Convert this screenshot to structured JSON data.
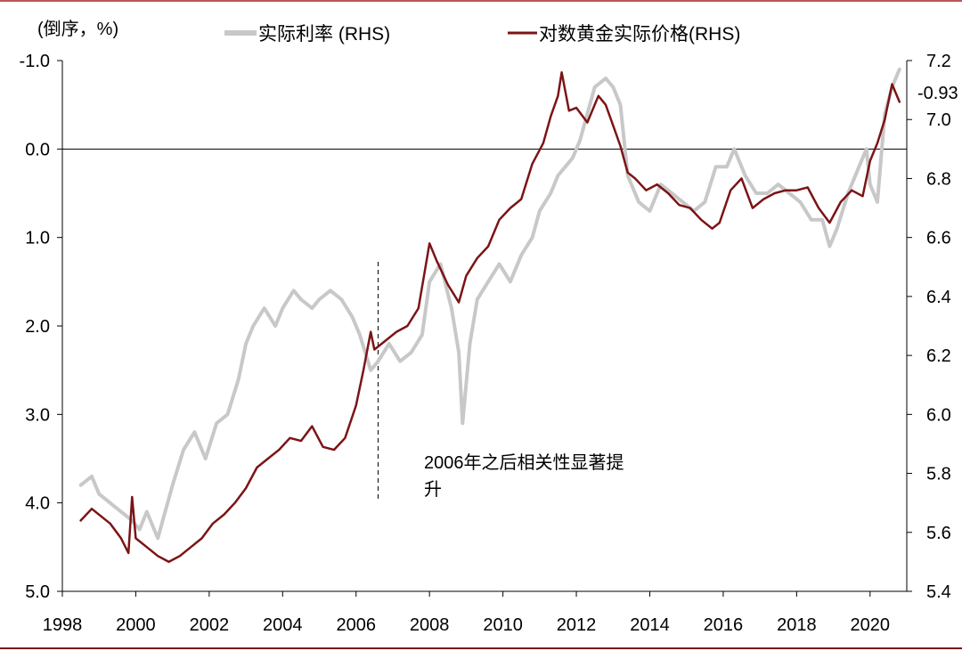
{
  "chart_data": {
    "type": "line",
    "left_axis_label": "(倒序，%)",
    "legend": [
      {
        "label": "实际利率 (RHS)",
        "color": "#c8c8c8"
      },
      {
        "label": "对数黄金实际价格(RHS)",
        "color": "#7b1416"
      }
    ],
    "left_axis": {
      "inverted": true,
      "ylim": [
        -1.0,
        5.0
      ],
      "ticks": [
        "-1.0",
        "0.0",
        "1.0",
        "2.0",
        "3.0",
        "4.0",
        "5.0"
      ]
    },
    "right_axis": {
      "ylim": [
        5.4,
        7.2
      ],
      "ticks": [
        "7.2",
        "7.0",
        "6.8",
        "6.6",
        "6.4",
        "6.2",
        "6.0",
        "5.8",
        "5.6",
        "5.4"
      ]
    },
    "x_ticks": [
      "1998",
      "2000",
      "2002",
      "2004",
      "2006",
      "2008",
      "2010",
      "2012",
      "2014",
      "2016",
      "2018",
      "2020"
    ],
    "annotation": {
      "text_line1": "2006年之后相关性显著提",
      "text_line2": "升",
      "x": 2006.6
    },
    "end_label": "-0.93",
    "series": [
      {
        "name": "实际利率 (RHS)",
        "axis": "left",
        "color": "#c8c8c8",
        "x": [
          1998.5,
          1998.8,
          1999.0,
          1999.3,
          1999.6,
          1999.9,
          2000.1,
          2000.3,
          2000.6,
          2000.8,
          2001.0,
          2001.3,
          2001.6,
          2001.9,
          2002.2,
          2002.5,
          2002.8,
          2003.0,
          2003.2,
          2003.5,
          2003.8,
          2004.0,
          2004.3,
          2004.5,
          2004.8,
          2005.0,
          2005.3,
          2005.6,
          2005.9,
          2006.1,
          2006.4,
          2006.6,
          2006.9,
          2007.2,
          2007.5,
          2007.8,
          2008.0,
          2008.3,
          2008.6,
          2008.8,
          2008.9,
          2009.1,
          2009.3,
          2009.6,
          2009.9,
          2010.2,
          2010.5,
          2010.8,
          2011.0,
          2011.3,
          2011.5,
          2011.7,
          2011.9,
          2012.1,
          2012.3,
          2012.5,
          2012.8,
          2013.0,
          2013.2,
          2013.4,
          2013.7,
          2014.0,
          2014.3,
          2014.6,
          2014.9,
          2015.2,
          2015.5,
          2015.8,
          2016.1,
          2016.3,
          2016.6,
          2016.9,
          2017.2,
          2017.5,
          2017.8,
          2018.1,
          2018.4,
          2018.7,
          2018.9,
          2019.1,
          2019.4,
          2019.7,
          2019.9,
          2020.0,
          2020.2,
          2020.4,
          2020.6,
          2020.8
        ],
        "values": [
          3.8,
          3.7,
          3.9,
          4.0,
          4.1,
          4.2,
          4.3,
          4.1,
          4.4,
          4.1,
          3.8,
          3.4,
          3.2,
          3.5,
          3.1,
          3.0,
          2.6,
          2.2,
          2.0,
          1.8,
          2.0,
          1.8,
          1.6,
          1.7,
          1.8,
          1.7,
          1.6,
          1.7,
          1.9,
          2.1,
          2.5,
          2.4,
          2.2,
          2.4,
          2.3,
          2.1,
          1.5,
          1.3,
          1.8,
          2.3,
          3.1,
          2.2,
          1.7,
          1.5,
          1.3,
          1.5,
          1.2,
          1.0,
          0.7,
          0.5,
          0.3,
          0.2,
          0.1,
          -0.1,
          -0.4,
          -0.7,
          -0.8,
          -0.7,
          -0.5,
          0.3,
          0.6,
          0.7,
          0.4,
          0.5,
          0.6,
          0.7,
          0.6,
          0.2,
          0.2,
          0.0,
          0.3,
          0.5,
          0.5,
          0.4,
          0.5,
          0.6,
          0.8,
          0.8,
          1.1,
          0.9,
          0.5,
          0.2,
          0.0,
          0.4,
          0.6,
          -0.4,
          -0.7,
          -0.9
        ]
      },
      {
        "name": "对数黄金实际价格(RHS)",
        "axis": "right",
        "color": "#7b1416",
        "x": [
          1998.5,
          1998.8,
          1999.1,
          1999.3,
          1999.6,
          1999.8,
          1999.9,
          2000.0,
          2000.3,
          2000.6,
          2000.9,
          2001.2,
          2001.5,
          2001.8,
          2002.1,
          2002.4,
          2002.7,
          2003.0,
          2003.3,
          2003.6,
          2003.9,
          2004.2,
          2004.5,
          2004.8,
          2005.1,
          2005.4,
          2005.7,
          2006.0,
          2006.2,
          2006.4,
          2006.5,
          2006.8,
          2007.1,
          2007.4,
          2007.7,
          2008.0,
          2008.2,
          2008.5,
          2008.8,
          2009.0,
          2009.3,
          2009.6,
          2009.9,
          2010.2,
          2010.5,
          2010.8,
          2011.1,
          2011.3,
          2011.5,
          2011.6,
          2011.8,
          2012.0,
          2012.3,
          2012.6,
          2012.8,
          2013.0,
          2013.2,
          2013.4,
          2013.6,
          2013.9,
          2014.2,
          2014.5,
          2014.8,
          2015.1,
          2015.4,
          2015.7,
          2015.9,
          2016.2,
          2016.5,
          2016.8,
          2017.1,
          2017.4,
          2017.7,
          2018.0,
          2018.3,
          2018.6,
          2018.9,
          2019.2,
          2019.5,
          2019.8,
          2020.0,
          2020.2,
          2020.4,
          2020.6,
          2020.8
        ],
        "values": [
          5.64,
          5.68,
          5.65,
          5.63,
          5.58,
          5.53,
          5.72,
          5.58,
          5.55,
          5.52,
          5.5,
          5.52,
          5.55,
          5.58,
          5.63,
          5.66,
          5.7,
          5.75,
          5.82,
          5.85,
          5.88,
          5.92,
          5.91,
          5.96,
          5.89,
          5.88,
          5.92,
          6.03,
          6.15,
          6.28,
          6.22,
          6.25,
          6.28,
          6.3,
          6.36,
          6.58,
          6.52,
          6.44,
          6.38,
          6.47,
          6.53,
          6.57,
          6.66,
          6.7,
          6.73,
          6.85,
          6.92,
          7.01,
          7.08,
          7.16,
          7.03,
          7.04,
          6.99,
          7.08,
          7.05,
          6.98,
          6.91,
          6.82,
          6.8,
          6.76,
          6.78,
          6.75,
          6.71,
          6.7,
          6.66,
          6.63,
          6.65,
          6.76,
          6.8,
          6.7,
          6.73,
          6.75,
          6.76,
          6.76,
          6.77,
          6.7,
          6.65,
          6.72,
          6.76,
          6.74,
          6.86,
          6.92,
          7.0,
          7.12,
          7.06
        ]
      }
    ]
  }
}
